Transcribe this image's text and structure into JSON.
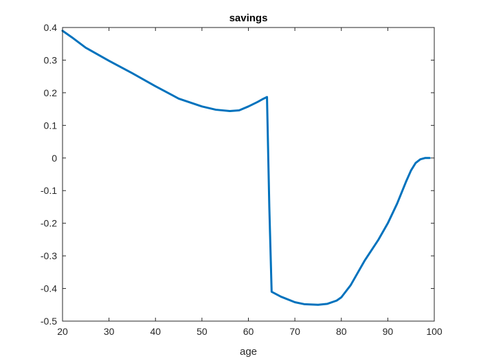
{
  "chart_data": {
    "type": "line",
    "title": "savings",
    "xlabel": "age",
    "ylabel": "",
    "xlim": [
      20,
      100
    ],
    "ylim": [
      -0.5,
      0.4
    ],
    "xticks": [
      20,
      30,
      40,
      50,
      60,
      70,
      80,
      90,
      100
    ],
    "xtick_labels": [
      "20",
      "30",
      "40",
      "50",
      "60",
      "70",
      "80",
      "90",
      "100"
    ],
    "yticks": [
      -0.5,
      -0.4,
      -0.3,
      -0.2,
      -0.1,
      0,
      0.1,
      0.2,
      0.3,
      0.4
    ],
    "ytick_labels": [
      "-0.5",
      "-0.4",
      "-0.3",
      "-0.2",
      "-0.1",
      "0",
      "0.1",
      "0.2",
      "0.3",
      "0.4"
    ],
    "grid": false,
    "colors": {
      "line": "#0072BD",
      "axes": "#262626",
      "background": "#ffffff"
    },
    "series": [
      {
        "x": [
          20,
          22,
          25,
          30,
          35,
          40,
          45,
          50,
          53,
          56,
          58,
          60,
          62,
          63,
          64,
          64.5,
          65,
          67,
          70,
          72,
          75,
          77,
          79,
          80,
          82,
          85,
          88,
          90,
          92,
          94,
          95,
          96,
          97,
          98,
          99
        ],
        "values": [
          0.39,
          0.37,
          0.338,
          0.298,
          0.26,
          0.22,
          0.182,
          0.158,
          0.148,
          0.144,
          0.146,
          0.158,
          0.172,
          0.18,
          0.187,
          -0.15,
          -0.41,
          -0.425,
          -0.442,
          -0.448,
          -0.45,
          -0.447,
          -0.437,
          -0.427,
          -0.39,
          -0.315,
          -0.25,
          -0.2,
          -0.14,
          -0.07,
          -0.038,
          -0.015,
          -0.004,
          0,
          0
        ]
      }
    ]
  }
}
